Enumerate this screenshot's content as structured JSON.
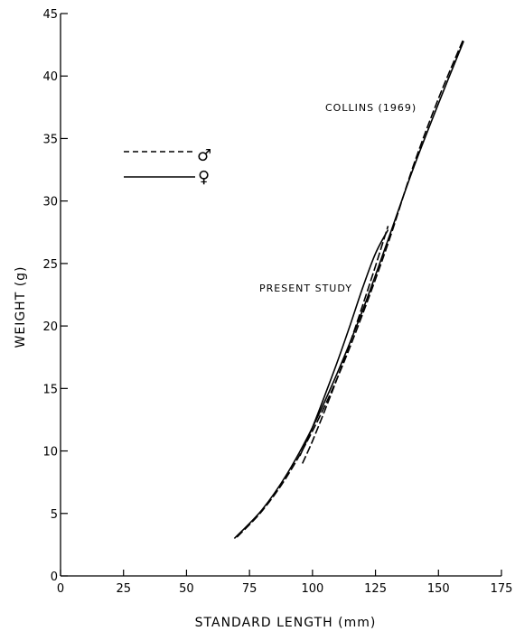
{
  "chart_data": {
    "type": "line",
    "xlabel": "STANDARD LENGTH (mm)",
    "ylabel": "WEIGHT (g)",
    "xlim": [
      0,
      175
    ],
    "ylim": [
      0,
      45
    ],
    "xticks": [
      0,
      25,
      50,
      75,
      100,
      125,
      150,
      175
    ],
    "yticks": [
      0,
      5,
      10,
      15,
      20,
      25,
      30,
      35,
      40,
      45
    ],
    "grid": false,
    "legend": {
      "placement": "top-left",
      "entries": [
        {
          "symbol": "♂",
          "style": "dashed"
        },
        {
          "symbol": "♀",
          "style": "solid"
        }
      ]
    },
    "annotations": [
      "COLLINS (1969)",
      "PRESENT STUDY"
    ],
    "series": [
      {
        "group": "COLLINS (1969)",
        "symbol": "♂",
        "style": "dashed",
        "x": [
          70,
          80,
          90,
          100,
          110,
          120,
          130,
          140,
          150,
          160
        ],
        "y": [
          3.1,
          5.2,
          8.0,
          11.6,
          15.9,
          21.0,
          26.6,
          32.8,
          38.2,
          43.0
        ]
      },
      {
        "group": "COLLINS (1969)",
        "symbol": "♀",
        "style": "solid",
        "x": [
          69,
          80,
          90,
          100,
          110,
          120,
          130,
          140,
          150,
          160
        ],
        "y": [
          3.0,
          5.3,
          8.2,
          11.9,
          16.3,
          21.3,
          26.9,
          32.6,
          37.8,
          42.8
        ]
      },
      {
        "group": "PRESENT STUDY",
        "symbol": "♂",
        "style": "dashed",
        "x": [
          96,
          100,
          105,
          110,
          115,
          120,
          125,
          130
        ],
        "y": [
          9.0,
          10.8,
          13.3,
          15.9,
          18.7,
          21.7,
          24.8,
          28.0
        ]
      },
      {
        "group": "PRESENT STUDY",
        "symbol": "♀",
        "style": "solid",
        "x": [
          95,
          100,
          105,
          110,
          115,
          120,
          125,
          130
        ],
        "y": [
          9.6,
          11.9,
          14.5,
          17.2,
          20.1,
          23.1,
          25.8,
          27.7
        ]
      }
    ]
  }
}
